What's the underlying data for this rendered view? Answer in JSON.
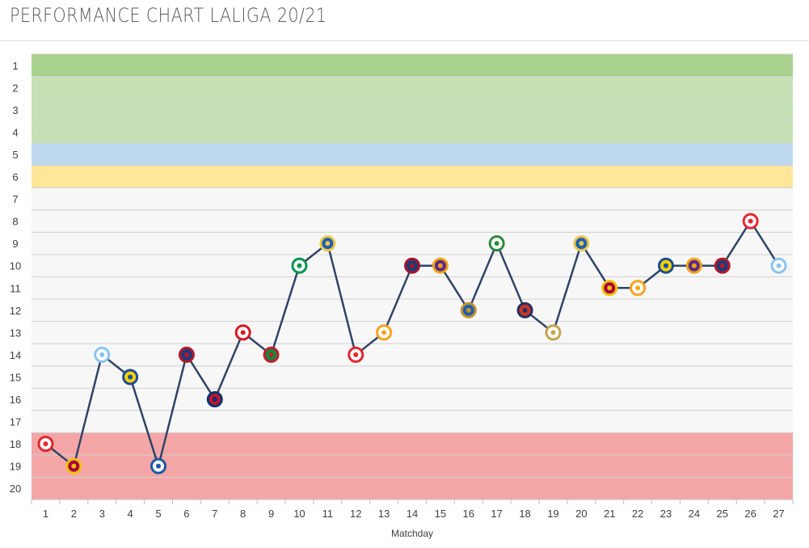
{
  "page": {
    "title": "PERFORMANCE CHART LALIGA 20/21"
  },
  "chart_data": {
    "type": "line",
    "title": "PERFORMANCE CHART LALIGA 20/21",
    "xlabel": "Matchday",
    "ylabel": "",
    "x": [
      1,
      2,
      3,
      4,
      5,
      6,
      7,
      8,
      9,
      10,
      11,
      12,
      13,
      14,
      15,
      16,
      17,
      18,
      19,
      20,
      21,
      22,
      23,
      24,
      25,
      26,
      27
    ],
    "y_ticks": [
      1,
      2,
      3,
      4,
      5,
      6,
      7,
      8,
      9,
      10,
      11,
      12,
      13,
      14,
      15,
      16,
      17,
      18,
      19,
      20
    ],
    "ylim": [
      1,
      20
    ],
    "y_inverted": true,
    "series": [
      {
        "values": [
          18,
          19,
          14,
          15,
          19,
          14,
          16,
          13,
          14,
          10,
          9,
          14,
          13,
          10,
          10,
          12,
          9,
          12,
          13,
          9,
          11,
          11,
          10,
          10,
          10,
          8,
          10
        ]
      }
    ],
    "opponents": [
      {
        "md": 1,
        "club": "granada"
      },
      {
        "md": 2,
        "club": "barcelona"
      },
      {
        "md": 3,
        "club": "celta"
      },
      {
        "md": 4,
        "club": "cadiz"
      },
      {
        "md": 5,
        "club": "alaves"
      },
      {
        "md": 6,
        "club": "levante"
      },
      {
        "md": 7,
        "club": "osasuna"
      },
      {
        "md": 8,
        "club": "sevilla"
      },
      {
        "md": 9,
        "club": "betis"
      },
      {
        "md": 10,
        "club": "betis-green"
      },
      {
        "md": 11,
        "club": "getafe"
      },
      {
        "md": 12,
        "club": "granada"
      },
      {
        "md": 13,
        "club": "valencia"
      },
      {
        "md": 14,
        "club": "huesca"
      },
      {
        "md": 15,
        "club": "valladolid"
      },
      {
        "md": 16,
        "club": "real-sociedad"
      },
      {
        "md": 17,
        "club": "elche"
      },
      {
        "md": 18,
        "club": "atletico"
      },
      {
        "md": 19,
        "club": "real-madrid"
      },
      {
        "md": 20,
        "club": "getafe"
      },
      {
        "md": 21,
        "club": "barcelona"
      },
      {
        "md": 22,
        "club": "valencia"
      },
      {
        "md": 23,
        "club": "cadiz"
      },
      {
        "md": 24,
        "club": "valladolid"
      },
      {
        "md": 25,
        "club": "levante"
      },
      {
        "md": 26,
        "club": "granada"
      },
      {
        "md": 27,
        "club": "celta"
      }
    ],
    "bands": [
      {
        "from": 1,
        "to": 1,
        "color": "#a9d18e"
      },
      {
        "from": 2,
        "to": 4,
        "color": "#c5e0b4"
      },
      {
        "from": 5,
        "to": 5,
        "color": "#bdd7ee"
      },
      {
        "from": 6,
        "to": 6,
        "color": "#ffe699"
      },
      {
        "from": 7,
        "to": 17,
        "color": "#f7f7f7"
      },
      {
        "from": 18,
        "to": 20,
        "color": "#f4a6a6"
      }
    ],
    "line_color": "#2f4468",
    "grid": true,
    "legend": "none"
  },
  "badge_colors": {
    "granada": [
      "#ffffff",
      "#e2272e"
    ],
    "barcelona": [
      "#a50044",
      "#f2c200"
    ],
    "celta": [
      "#ffffff",
      "#8ac3ee"
    ],
    "cadiz": [
      "#f2d300",
      "#1e4c9a"
    ],
    "alaves": [
      "#ffffff",
      "#1b57a4"
    ],
    "levante": [
      "#1c3a7a",
      "#b5172b"
    ],
    "osasuna": [
      "#c4122f",
      "#0a346f"
    ],
    "sevilla": [
      "#ffffff",
      "#d71920"
    ],
    "betis": [
      "#0b8a3a",
      "#c41e2e"
    ],
    "betis-green": [
      "#ffffff",
      "#00954c"
    ],
    "getafe": [
      "#1f5fae",
      "#e9c94b"
    ],
    "valencia": [
      "#ffffff",
      "#f7a21b"
    ],
    "huesca": [
      "#1c3a7a",
      "#a3172b"
    ],
    "valladolid": [
      "#5b2a86",
      "#f0a419"
    ],
    "real-sociedad": [
      "#1f5fae",
      "#c6922a"
    ],
    "elche": [
      "#ffffff",
      "#2c8a3e"
    ],
    "atletico": [
      "#cb3524",
      "#272e61"
    ],
    "real-madrid": [
      "#ffffff",
      "#c5a44e"
    ]
  }
}
